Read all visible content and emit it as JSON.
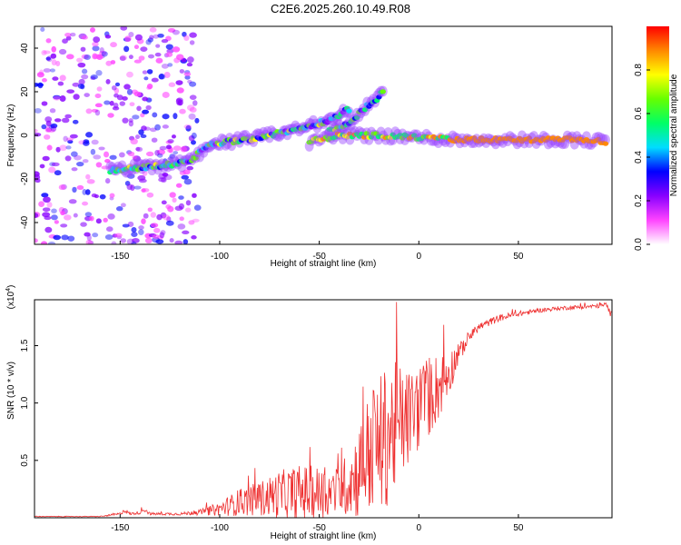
{
  "title": "C2E6.2025.260.10.49.R08",
  "colors": {
    "snr_line": "#ee3030",
    "colorbar": [
      "#ffffff",
      "#ff44ff",
      "#8800ff",
      "#0000ff",
      "#00ddff",
      "#00ff66",
      "#66ff00",
      "#ffff00",
      "#ff8800",
      "#ff0000"
    ]
  },
  "chart_data": [
    {
      "type": "heatmap",
      "name": "spectrogram",
      "xlabel": "Height of straight line (km)",
      "ylabel": "Frequency (Hz)",
      "xlim": [
        -193,
        97
      ],
      "ylim": [
        -50,
        50
      ],
      "xticks": [
        -150,
        -100,
        -50,
        0,
        50
      ],
      "yticks": [
        -40,
        -20,
        0,
        20,
        40
      ],
      "colorbar": {
        "label": "Normalized spectral amplitude",
        "range": [
          0,
          1
        ],
        "ticks": [
          "0.0",
          "0.2",
          "0.4",
          "0.6",
          "0.8"
        ],
        "tick_values": [
          0,
          0.2,
          0.4,
          0.6,
          0.8
        ]
      },
      "features": [
        {
          "name": "lower branch",
          "points": [
            [
              -155,
              -16
            ],
            [
              -130,
              -14
            ],
            [
              -115,
              -12
            ],
            [
              -105,
              -4
            ],
            [
              -80,
              -1
            ],
            [
              -60,
              3
            ],
            [
              -45,
              7
            ],
            [
              -35,
              12
            ]
          ]
        },
        {
          "name": "upper branch",
          "points": [
            [
              -45,
              2
            ],
            [
              -35,
              5
            ],
            [
              -28,
              12
            ],
            [
              -22,
              16
            ],
            [
              -18,
              20
            ]
          ]
        },
        {
          "name": "main line",
          "points": [
            [
              -55,
              -3
            ],
            [
              -40,
              0
            ],
            [
              -20,
              0
            ],
            [
              0,
              -1
            ],
            [
              20,
              -2
            ],
            [
              80,
              -2
            ],
            [
              95,
              -3
            ]
          ]
        }
      ]
    },
    {
      "type": "line",
      "name": "snr",
      "xlabel": "Height of straight line (km)",
      "ylabel": "SNR (10 * v/v)",
      "multiplier": "(x10",
      "multiplier_exp": "4",
      "xlim": [
        -193,
        97
      ],
      "ylim": [
        0,
        1.9
      ],
      "xticks": [
        -150,
        -100,
        -50,
        0,
        50
      ],
      "yticks": [
        0.5,
        1.0,
        1.5
      ],
      "ytick_labels": [
        "0.5",
        "1.0",
        "1.5"
      ],
      "envelope": {
        "x": [
          -193,
          -160,
          -150,
          -148,
          -145,
          -140,
          -138,
          -135,
          -120,
          -110,
          -100,
          -95,
          -90,
          -80,
          -70,
          -60,
          -50,
          -45,
          -40,
          -35,
          -30,
          -25,
          -20,
          -15,
          -10,
          -5,
          0,
          5,
          10,
          15,
          20,
          25,
          30,
          40,
          50,
          60,
          70,
          80,
          90,
          94,
          97
        ],
        "base": [
          0.01,
          0.01,
          0.03,
          0.06,
          0.03,
          0.04,
          0.07,
          0.03,
          0.03,
          0.04,
          0.06,
          0.08,
          0.1,
          0.12,
          0.14,
          0.15,
          0.14,
          0.15,
          0.17,
          0.22,
          0.28,
          0.4,
          0.45,
          0.55,
          0.65,
          0.75,
          0.85,
          0.95,
          1.05,
          1.2,
          1.4,
          1.55,
          1.65,
          1.73,
          1.77,
          1.8,
          1.82,
          1.83,
          1.84,
          1.85,
          1.75
        ],
        "spread": [
          0.005,
          0.005,
          0.02,
          0.04,
          0.02,
          0.02,
          0.04,
          0.02,
          0.02,
          0.04,
          0.1,
          0.15,
          0.2,
          0.25,
          0.35,
          0.4,
          0.4,
          0.38,
          0.35,
          0.5,
          0.7,
          0.9,
          1.0,
          1.05,
          0.9,
          0.7,
          0.65,
          0.6,
          0.5,
          0.35,
          0.15,
          0.08,
          0.06,
          0.05,
          0.04,
          0.03,
          0.03,
          0.03,
          0.03,
          0.04,
          0.05
        ]
      }
    }
  ]
}
